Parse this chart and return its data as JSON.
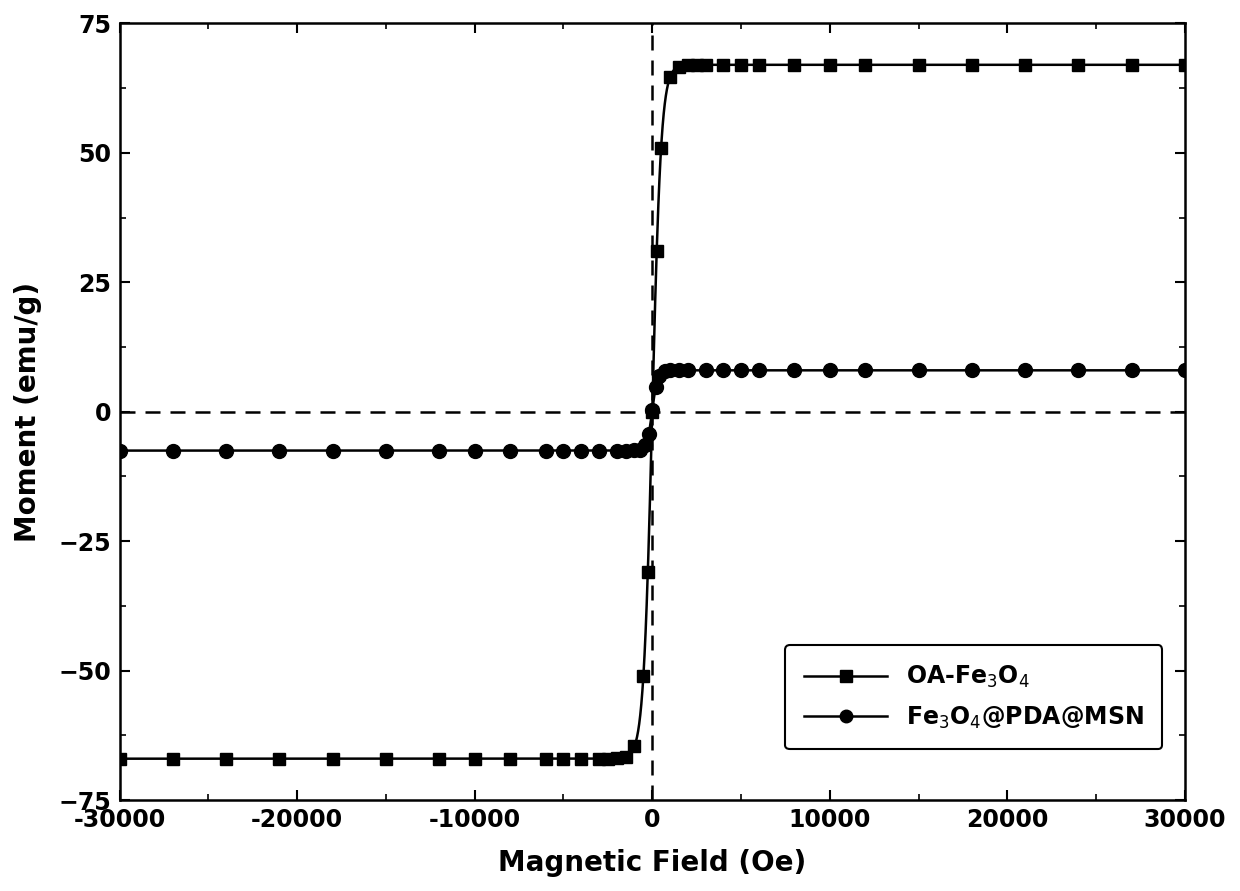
{
  "title": "",
  "xlabel": "Magnetic Field (Oe)",
  "ylabel": "Moment (emu/g)",
  "xlim": [
    -30000,
    30000
  ],
  "ylim": [
    -75,
    75
  ],
  "xticks": [
    -30000,
    -20000,
    -10000,
    0,
    10000,
    20000,
    30000
  ],
  "yticks": [
    -75,
    -50,
    -25,
    0,
    25,
    50,
    75
  ],
  "legend1_label": "OA-Fe$_3$O$_4$",
  "legend2_label": "Fe$_3$O$_4$@PDA@MSN",
  "background_color": "#ffffff",
  "OA_Ms": 67.0,
  "OA_Hs": 800,
  "OA_power": 0.35,
  "MSN_Ms": 8.0,
  "MSN_Hs": 600,
  "MSN_sat_low": -7.5,
  "MSN_sat_high": 8.0
}
